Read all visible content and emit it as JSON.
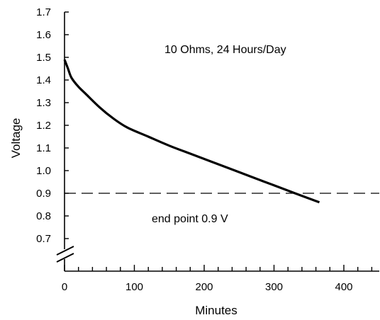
{
  "chart_data": {
    "type": "line",
    "xlabel": "Minutes",
    "ylabel": "Voltage",
    "xlim": [
      0,
      450
    ],
    "ylim": [
      0.7,
      1.7
    ],
    "y_axis_break": true,
    "grid": false,
    "legend": "none",
    "x_ticks": [
      0,
      100,
      200,
      300,
      400
    ],
    "x_tick_labels": [
      "0",
      "100",
      "200",
      "300",
      "400"
    ],
    "y_ticks": [
      1.7,
      1.6,
      1.5,
      1.4,
      1.3,
      1.2,
      1.1,
      1.0,
      0.9,
      0.8,
      0.7
    ],
    "y_tick_labels": [
      "1.7",
      "1.6",
      "1.5",
      "1.4",
      "1.3",
      "1.2",
      "1.1",
      "1.0",
      "0.9",
      "0.8",
      "0.7"
    ],
    "annotations": {
      "condition": "10 Ohms, 24 Hours/Day",
      "endpoint": "end point 0.9 V"
    },
    "endpoint_voltage": 0.9,
    "series": [
      {
        "x": [
          0,
          5,
          10,
          20,
          30,
          50,
          70,
          90,
          120,
          150,
          180,
          210,
          240,
          270,
          300,
          330,
          365
        ],
        "y": [
          1.49,
          1.45,
          1.41,
          1.37,
          1.34,
          1.28,
          1.23,
          1.19,
          1.15,
          1.11,
          1.075,
          1.04,
          1.005,
          0.97,
          0.935,
          0.9,
          0.86
        ],
        "color": "#000000"
      }
    ],
    "colors": {
      "line": "#000000",
      "axis": "#000000",
      "background": "#ffffff"
    }
  }
}
